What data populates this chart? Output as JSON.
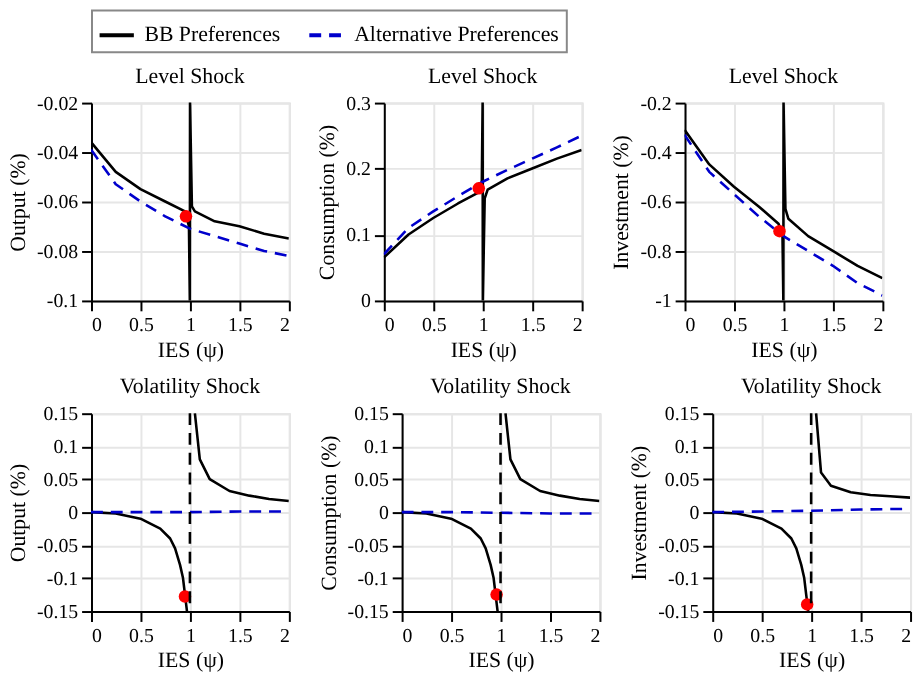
{
  "chart_data": [
    {
      "type": "line",
      "title": "Level Shock",
      "xlabel": "IES (ψ)",
      "ylabel": "Output (%)",
      "xlim": [
        0,
        2
      ],
      "xticks": [
        0,
        0.5,
        1,
        1.5,
        2
      ],
      "ylim": [
        -0.1,
        -0.02
      ],
      "yticks": [
        -0.1,
        -0.08,
        -0.06,
        -0.04,
        -0.02
      ],
      "grid": true,
      "legend": "top",
      "series": [
        {
          "name": "BB Preferences",
          "color": "#000000",
          "line_style": "solid",
          "x": [
            0,
            0.25,
            0.5,
            0.75,
            0.95,
            0.99,
            0.999,
            1.001,
            1.02,
            1.05,
            1.25,
            1.5,
            1.75,
            2
          ],
          "values": [
            -0.036,
            -0.048,
            -0.055,
            -0.06,
            -0.064,
            -0.07,
            -0.1,
            -0.02,
            -0.062,
            -0.064,
            -0.068,
            -0.07,
            -0.073,
            -0.075
          ]
        },
        {
          "name": "Alternative Preferences",
          "color": "#0000cc",
          "line_style": "dashed",
          "x": [
            0,
            0.25,
            0.5,
            0.75,
            1,
            1.25,
            1.5,
            1.75,
            2
          ],
          "values": [
            -0.039,
            -0.053,
            -0.06,
            -0.066,
            -0.071,
            -0.074,
            -0.077,
            -0.08,
            -0.082
          ]
        },
        {
          "type": "scatter",
          "marker": "circle",
          "color": "#ff0000",
          "x": [
            0.96
          ],
          "values": [
            -0.066
          ]
        }
      ]
    },
    {
      "type": "line",
      "title": "Level Shock",
      "xlabel": "IES (ψ)",
      "ylabel": "Consumption (%)",
      "xlim": [
        0,
        2
      ],
      "xticks": [
        0,
        0.5,
        1,
        1.5,
        2
      ],
      "ylim": [
        0,
        0.3
      ],
      "yticks": [
        0,
        0.1,
        0.2,
        0.3
      ],
      "grid": true,
      "series": [
        {
          "color": "#000000",
          "line_style": "solid",
          "x": [
            0,
            0.25,
            0.5,
            0.75,
            0.95,
            0.99,
            0.999,
            1.001,
            1.02,
            1.05,
            1.25,
            1.5,
            1.75,
            2
          ],
          "values": [
            0.065,
            0.1,
            0.125,
            0.147,
            0.163,
            0.172,
            0.3,
            0,
            0.155,
            0.168,
            0.185,
            0.2,
            0.215,
            0.228
          ]
        },
        {
          "color": "#0000cc",
          "line_style": "dashed",
          "x": [
            0,
            0.25,
            0.5,
            0.75,
            1,
            1.25,
            1.5,
            1.75,
            2
          ],
          "values": [
            0.07,
            0.11,
            0.135,
            0.158,
            0.18,
            0.198,
            0.215,
            0.232,
            0.25
          ]
        },
        {
          "type": "scatter",
          "marker": "circle",
          "color": "#ff0000",
          "x": [
            0.96
          ],
          "values": [
            0.17
          ]
        }
      ]
    },
    {
      "type": "line",
      "title": "Level Shock",
      "xlabel": "IES (ψ)",
      "ylabel": "Investment (%)",
      "xlim": [
        0,
        2
      ],
      "xticks": [
        0,
        0.5,
        1,
        1.5,
        2
      ],
      "ylim": [
        -1,
        -0.2
      ],
      "yticks": [
        -1,
        -0.8,
        -0.6,
        -0.4,
        -0.2
      ],
      "grid": true,
      "series": [
        {
          "color": "#000000",
          "line_style": "solid",
          "x": [
            0,
            0.25,
            0.5,
            0.75,
            0.95,
            0.99,
            0.999,
            1.001,
            1.02,
            1.05,
            1.25,
            1.5,
            1.75,
            2
          ],
          "values": [
            -0.31,
            -0.45,
            -0.54,
            -0.62,
            -0.69,
            -0.73,
            -1,
            -0.2,
            -0.63,
            -0.67,
            -0.74,
            -0.8,
            -0.86,
            -0.91
          ]
        },
        {
          "color": "#0000cc",
          "line_style": "dashed",
          "x": [
            0,
            0.25,
            0.5,
            0.75,
            1,
            1.25,
            1.5,
            1.75,
            2
          ],
          "values": [
            -0.33,
            -0.48,
            -0.57,
            -0.66,
            -0.74,
            -0.8,
            -0.86,
            -0.93,
            -0.98
          ]
        },
        {
          "type": "scatter",
          "marker": "circle",
          "color": "#ff0000",
          "x": [
            0.96
          ],
          "values": [
            -0.72
          ]
        }
      ]
    },
    {
      "type": "line",
      "title": "Volatility Shock",
      "xlabel": "IES (ψ)",
      "ylabel": "Output (%)",
      "xlim": [
        0,
        2
      ],
      "xticks": [
        0,
        0.5,
        1,
        1.5,
        2
      ],
      "ylim": [
        -0.15,
        0.15
      ],
      "yticks": [
        -0.15,
        -0.1,
        -0.05,
        0,
        0.05,
        0.1,
        0.15
      ],
      "grid": true,
      "series": [
        {
          "color": "#000000",
          "line_style": "solid",
          "x": [
            0,
            0.25,
            0.5,
            0.7,
            0.8,
            0.85,
            0.9,
            0.93,
            0.95,
            0.97
          ],
          "values": [
            0,
            -0.002,
            -0.01,
            -0.025,
            -0.04,
            -0.055,
            -0.08,
            -0.1,
            -0.125,
            -0.15
          ]
        },
        {
          "color": "#000000",
          "line_style": "solid",
          "x": [
            1.05,
            1.1,
            1.2,
            1.4,
            1.6,
            1.8,
            2
          ],
          "values": [
            0.15,
            0.08,
            0.05,
            0.032,
            0.025,
            0.02,
            0.017
          ]
        },
        {
          "color": "#0000cc",
          "line_style": "dashed",
          "x": [
            0,
            0.5,
            1,
            1.5,
            2
          ],
          "values": [
            0,
            0,
            0,
            0.001,
            0.001
          ]
        },
        {
          "type": "scatter",
          "marker": "circle",
          "color": "#ff0000",
          "x": [
            0.95
          ],
          "values": [
            -0.128
          ]
        }
      ],
      "ref_lines": [
        {
          "axis": "x",
          "value": 1,
          "color": "#000000",
          "line_style": "dashed"
        }
      ]
    },
    {
      "type": "line",
      "title": "Volatility Shock",
      "xlabel": "IES (ψ)",
      "ylabel": "Consumption (%)",
      "xlim": [
        0,
        2
      ],
      "xticks": [
        0,
        0.5,
        1,
        1.5,
        2
      ],
      "ylim": [
        -0.15,
        0.15
      ],
      "yticks": [
        -0.15,
        -0.1,
        -0.05,
        0,
        0.05,
        0.1,
        0.15
      ],
      "grid": true,
      "series": [
        {
          "color": "#000000",
          "line_style": "solid",
          "x": [
            0,
            0.25,
            0.5,
            0.7,
            0.8,
            0.85,
            0.9,
            0.93,
            0.95,
            0.97
          ],
          "values": [
            0,
            -0.002,
            -0.01,
            -0.025,
            -0.04,
            -0.055,
            -0.08,
            -0.1,
            -0.125,
            -0.15
          ]
        },
        {
          "color": "#000000",
          "line_style": "solid",
          "x": [
            1.05,
            1.1,
            1.2,
            1.4,
            1.6,
            1.8,
            2
          ],
          "values": [
            0.15,
            0.08,
            0.05,
            0.032,
            0.025,
            0.02,
            0.017
          ]
        },
        {
          "color": "#0000cc",
          "line_style": "dashed",
          "x": [
            0,
            0.5,
            1,
            1.5,
            2
          ],
          "values": [
            0,
            0,
            -0.001,
            -0.002,
            -0.002
          ]
        },
        {
          "type": "scatter",
          "marker": "circle",
          "color": "#ff0000",
          "x": [
            0.96
          ],
          "values": [
            -0.125
          ]
        }
      ],
      "ref_lines": [
        {
          "axis": "x",
          "value": 1,
          "color": "#000000",
          "line_style": "dashed"
        }
      ]
    },
    {
      "type": "line",
      "title": "Volatility Shock",
      "xlabel": "IES (ψ)",
      "ylabel": "Investment (%)",
      "xlim": [
        0,
        2
      ],
      "xticks": [
        0,
        0.5,
        1,
        1.5,
        2
      ],
      "ylim": [
        -0.15,
        0.15
      ],
      "yticks": [
        -0.15,
        -0.1,
        -0.05,
        0,
        0.05,
        0.1,
        0.15
      ],
      "grid": true,
      "series": [
        {
          "color": "#000000",
          "line_style": "solid",
          "x": [
            0,
            0.25,
            0.5,
            0.7,
            0.8,
            0.85,
            0.9,
            0.93,
            0.95,
            0.97
          ],
          "values": [
            0,
            -0.002,
            -0.01,
            -0.025,
            -0.04,
            -0.055,
            -0.08,
            -0.1,
            -0.125,
            -0.15
          ]
        },
        {
          "color": "#000000",
          "line_style": "solid",
          "x": [
            1.05,
            1.1,
            1.2,
            1.4,
            1.6,
            1.8,
            2
          ],
          "values": [
            0.15,
            0.06,
            0.04,
            0.03,
            0.026,
            0.024,
            0.022
          ]
        },
        {
          "color": "#0000cc",
          "line_style": "dashed",
          "x": [
            0,
            0.5,
            1,
            1.5,
            2
          ],
          "values": [
            0,
            0.001,
            0.002,
            0.004,
            0.005
          ]
        },
        {
          "type": "scatter",
          "marker": "circle",
          "color": "#ff0000",
          "x": [
            0.96
          ],
          "values": [
            -0.14
          ]
        }
      ],
      "ref_lines": [
        {
          "axis": "x",
          "value": 1,
          "color": "#000000",
          "line_style": "dashed"
        }
      ]
    }
  ]
}
